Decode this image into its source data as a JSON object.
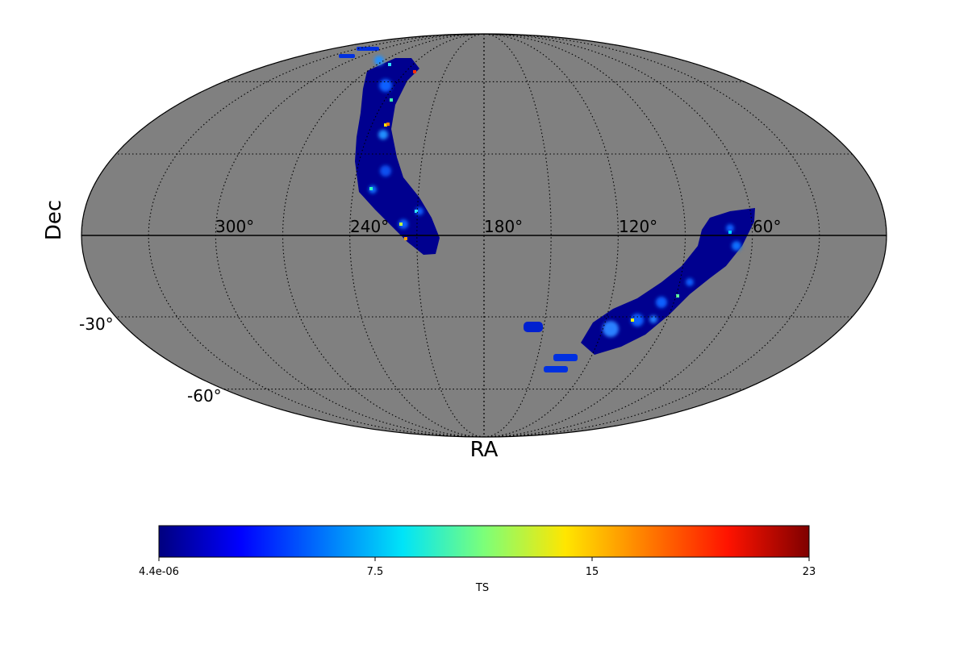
{
  "chart_data": {
    "type": "heatmap",
    "projection": "mollweide",
    "xlabel": "RA",
    "ylabel": "Dec",
    "background_color": "#808080",
    "ra_tick_labels": [
      "300°",
      "240°",
      "180°",
      "120°",
      "60°"
    ],
    "ra_ticks": [
      300,
      240,
      180,
      120,
      60
    ],
    "dec_tick_labels": [
      "-30°",
      "-60°"
    ],
    "dec_ticks": [
      -30,
      -60
    ],
    "graticule": true,
    "colorbar": {
      "label": "TS",
      "colormap": "jet",
      "range": [
        4.4e-06,
        23
      ],
      "tick_labels": [
        "4.4e-06",
        "7.5",
        "15",
        "23"
      ],
      "ticks": [
        4.4e-06,
        7.5,
        15,
        23
      ],
      "placement": "bottom"
    }
  }
}
